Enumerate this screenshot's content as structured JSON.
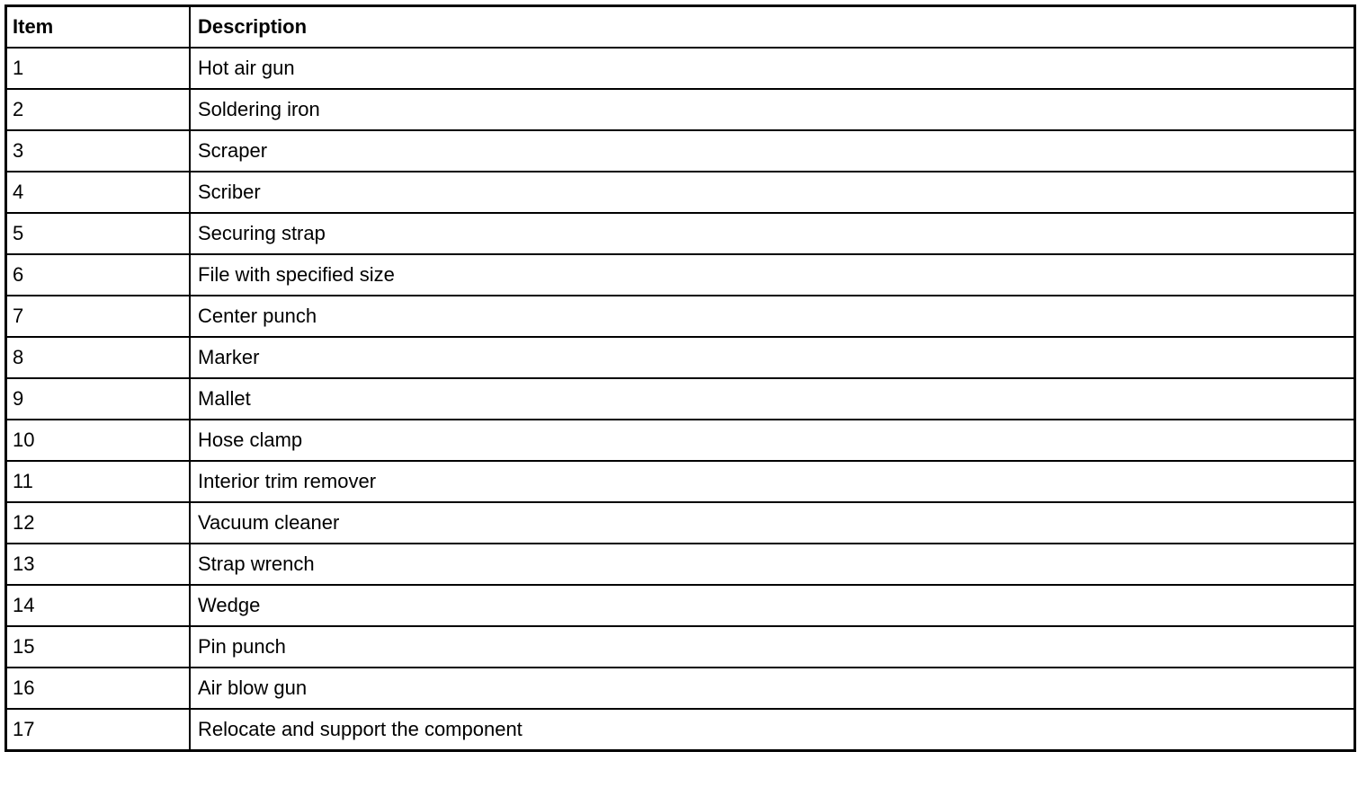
{
  "table": {
    "headers": [
      "Item",
      "Description"
    ],
    "rows": [
      [
        "1",
        "Hot air gun"
      ],
      [
        "2",
        "Soldering iron"
      ],
      [
        "3",
        "Scraper"
      ],
      [
        "4",
        "Scriber"
      ],
      [
        "5",
        "Securing strap"
      ],
      [
        "6",
        "File with specified size"
      ],
      [
        "7",
        "Center punch"
      ],
      [
        "8",
        "Marker"
      ],
      [
        "9",
        "Mallet"
      ],
      [
        "10",
        "Hose clamp"
      ],
      [
        "11",
        "Interior trim remover"
      ],
      [
        "12",
        "Vacuum cleaner"
      ],
      [
        "13",
        "Strap wrench"
      ],
      [
        "14",
        "Wedge"
      ],
      [
        "15",
        "Pin punch"
      ],
      [
        "16",
        "Air blow gun"
      ],
      [
        "17",
        "Relocate and support the component"
      ]
    ]
  }
}
